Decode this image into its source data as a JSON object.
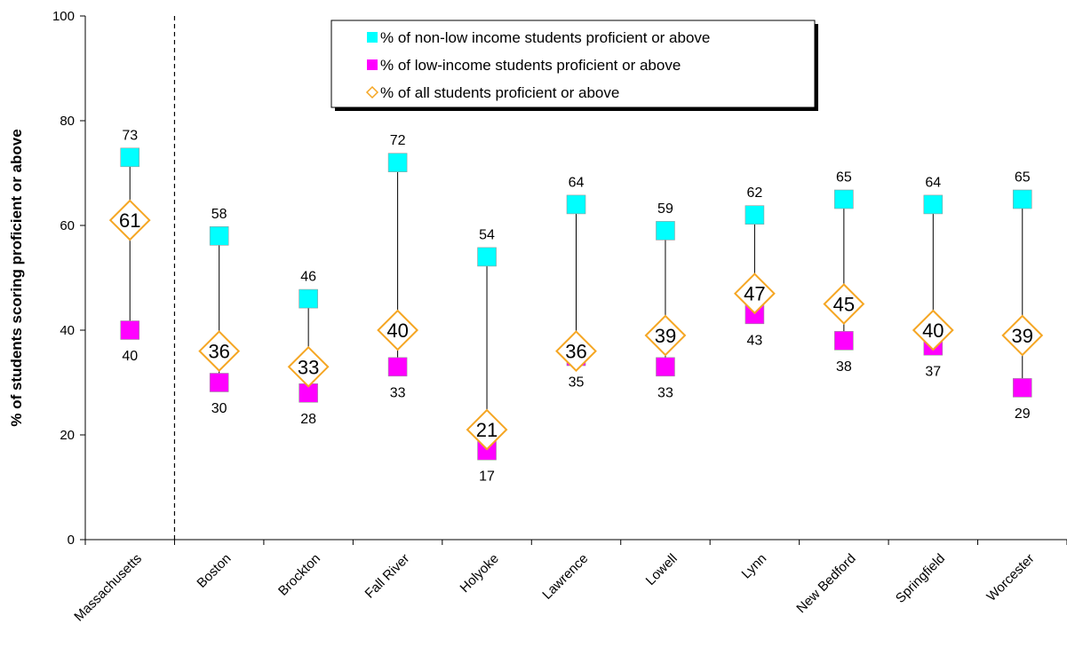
{
  "chart_data": {
    "type": "scatter",
    "ylabel": "% of students scoring proficient or above",
    "ylim": [
      0,
      100
    ],
    "yticks": [
      0,
      20,
      40,
      60,
      80,
      100
    ],
    "categories": [
      "Massachusetts",
      "Boston",
      "Brockton",
      "Fall River",
      "Holyoke",
      "Lawrence",
      "Lowell",
      "Lynn",
      "New Bedford",
      "Springfield",
      "Worcester"
    ],
    "series": [
      {
        "name": "% of non-low income students proficient or above",
        "marker": "square",
        "color": "#00FFFF",
        "values": [
          73,
          58,
          46,
          72,
          54,
          64,
          59,
          62,
          65,
          64,
          65
        ]
      },
      {
        "name": "% of low-income students proficient or above",
        "marker": "square",
        "color": "#FF00FF",
        "values": [
          40,
          30,
          28,
          33,
          17,
          35,
          33,
          43,
          38,
          37,
          29
        ]
      },
      {
        "name": "% of all students proficient or above",
        "marker": "diamond",
        "color": "#F5A623",
        "values": [
          61,
          36,
          33,
          40,
          21,
          36,
          39,
          47,
          45,
          40,
          39
        ]
      }
    ],
    "separator_after_category": "Massachusetts",
    "legend_position": "top-center",
    "grid": false
  }
}
